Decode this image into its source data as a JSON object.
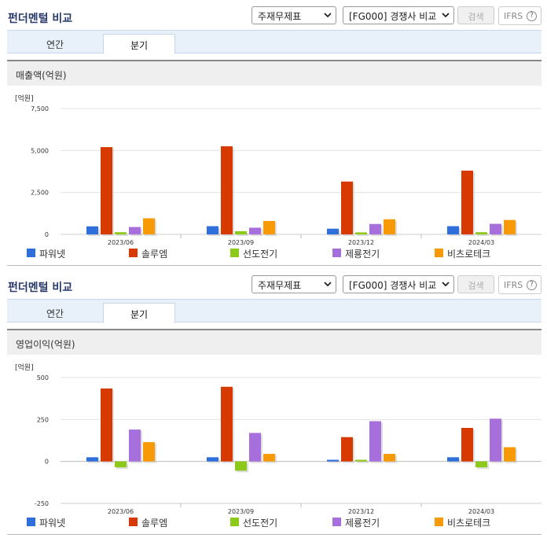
{
  "panels": [
    {
      "header_title": "펀더멘털 비교",
      "select1": "주재무제표",
      "select2": "[FG000] 경쟁사 비교",
      "search_label": "검색",
      "ifrs_label": "IFRS",
      "ifrs_help": "?",
      "tabs": [
        "연간",
        "분기"
      ],
      "active_tab": "분기",
      "chart_title": "매출액(억원)"
    },
    {
      "header_title": "펀더멘털 비교",
      "select1": "주재무제표",
      "select2": "[FG000] 경쟁사 비교",
      "search_label": "검색",
      "ifrs_label": "IFRS",
      "ifrs_help": "?",
      "tabs": [
        "연간",
        "분기"
      ],
      "active_tab": "분기",
      "chart_title": "영업이익(억원)"
    }
  ],
  "colors": {
    "파워넷": "#2f6fdc",
    "솔루엠": "#d63a00",
    "선도전기": "#8cc919",
    "제룡전기": "#a66fdc",
    "비츠로테크": "#f79a06"
  },
  "chart_data": [
    {
      "type": "bar",
      "title": "매출액(억원)",
      "unit_label": "[억원]",
      "categories": [
        "2023/06",
        "2023/09",
        "2023/12",
        "2024/03"
      ],
      "ylim": [
        0,
        7500
      ],
      "yticks": [
        0,
        2500,
        5000,
        7500
      ],
      "ytick_labels": [
        "0",
        "2,500",
        "5,000",
        "7,500"
      ],
      "grid": true,
      "legend_position": "bottom",
      "series": [
        {
          "name": "파워넷",
          "values": [
            480,
            490,
            340,
            490
          ]
        },
        {
          "name": "솔루엠",
          "values": [
            5200,
            5250,
            3150,
            3800
          ]
        },
        {
          "name": "선도전기",
          "values": [
            130,
            190,
            120,
            130
          ]
        },
        {
          "name": "제룡전기",
          "values": [
            440,
            400,
            620,
            630
          ]
        },
        {
          "name": "비츠로테크",
          "values": [
            960,
            800,
            900,
            860
          ]
        }
      ]
    },
    {
      "type": "bar",
      "title": "영업이익(억원)",
      "unit_label": "[억원]",
      "categories": [
        "2023/06",
        "2023/09",
        "2023/12",
        "2024/03"
      ],
      "ylim": [
        -250,
        500
      ],
      "yticks": [
        -250,
        0,
        250,
        500
      ],
      "ytick_labels": [
        "-250",
        "0",
        "250",
        "500"
      ],
      "grid": true,
      "legend_position": "bottom",
      "series": [
        {
          "name": "파워넷",
          "values": [
            25,
            25,
            10,
            25
          ]
        },
        {
          "name": "솔루엠",
          "values": [
            435,
            445,
            145,
            200
          ]
        },
        {
          "name": "선도전기",
          "values": [
            -35,
            -55,
            10,
            -35
          ]
        },
        {
          "name": "제룡전기",
          "values": [
            190,
            170,
            240,
            255
          ]
        },
        {
          "name": "비츠로테크",
          "values": [
            115,
            45,
            45,
            85
          ]
        }
      ]
    }
  ]
}
